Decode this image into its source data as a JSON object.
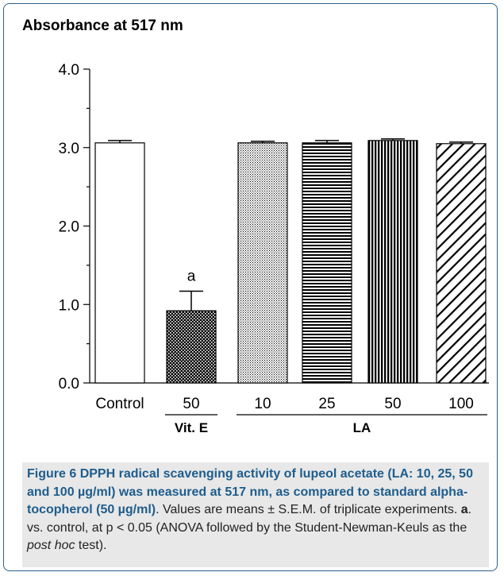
{
  "chart_data": {
    "type": "bar",
    "title": "Absorbance at 517 nm",
    "categories": [
      "Control",
      "50",
      "10",
      "25",
      "50",
      "100"
    ],
    "values": [
      3.06,
      0.92,
      3.06,
      3.06,
      3.09,
      3.05
    ],
    "errors": [
      0.03,
      0.25,
      0.02,
      0.03,
      0.02,
      0.02
    ],
    "fills": [
      "white",
      "dots",
      "dense-dots",
      "horizontal-lines",
      "vertical-lines",
      "diagonal-lines"
    ],
    "annotations": [
      {
        "category_index": 1,
        "text": "a"
      }
    ],
    "groups": [
      {
        "label": "Vit. E",
        "category_indices": [
          1
        ]
      },
      {
        "label": "LA",
        "category_indices": [
          2,
          3,
          4,
          5
        ]
      }
    ],
    "yticks": [
      "0.0",
      "1.0",
      "2.0",
      "3.0",
      "4.0"
    ],
    "ylim": [
      0,
      4.0
    ],
    "xlabel": "",
    "ylabel": "",
    "grid": false
  },
  "caption": {
    "figure_label": "Figure 6",
    "title": "DPPH radical scavenging activity of lupeol acetate (LA: 10, 25, 50 and 100 µg/ml) was measured at 517 nm, as compared to standard alpha-tocopherol (50 µg/ml)",
    "text1": ". Values are means ± S.E.M. of triplicate experiments. ",
    "bold_a": "a",
    "text2": ". vs. control, at p < 0.05 (ANOVA followed by the Student-Newman-Keuls as the ",
    "italic": "post hoc",
    "text3": " test)."
  }
}
